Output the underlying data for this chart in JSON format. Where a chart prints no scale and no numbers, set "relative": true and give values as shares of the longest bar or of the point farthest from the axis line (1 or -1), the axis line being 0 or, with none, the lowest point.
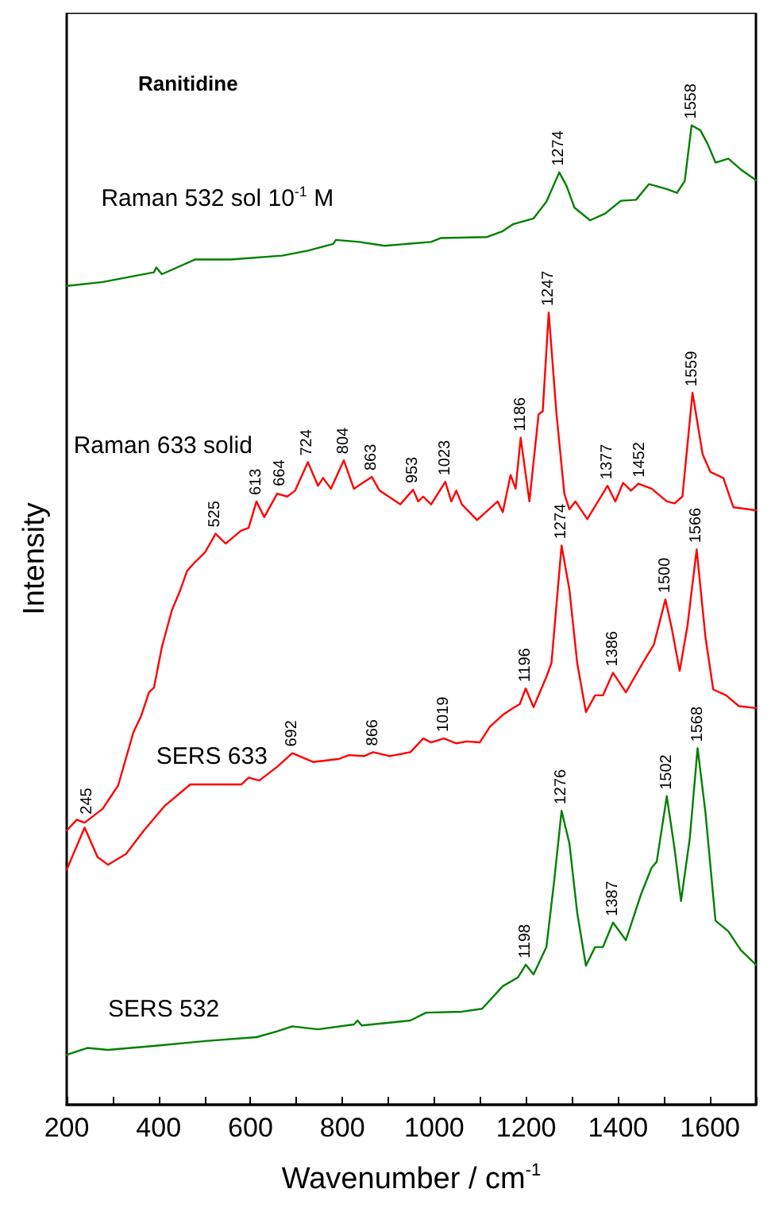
{
  "chart_data": {
    "type": "line",
    "title": "Ranitidine",
    "xlabel": "Wavenumber / cm$^{-1}$",
    "ylabel": "Intensity",
    "relative": true,
    "xlim": [
      200,
      1700
    ],
    "xticks": [
      200,
      {
        "value": 300,
        "label": null
      },
      400,
      {
        "value": 500,
        "label": null
      },
      600,
      {
        "value": 700,
        "label": null
      },
      800,
      {
        "value": 900,
        "label": null
      },
      1000,
      {
        "value": 1100,
        "label": null
      },
      1200,
      {
        "value": 1300,
        "label": null
      },
      1400,
      {
        "value": 1500,
        "label": null
      },
      1600,
      {
        "value": 1700,
        "label": null
      }
    ],
    "grid": false,
    "legend": false,
    "marker": "none",
    "line_style": "solid",
    "series": [
      {
        "name": "Raman 532 sol 10$^{-1}$ M",
        "color": "#008000",
        "x": [
          200,
          278,
          390,
          395,
          407,
          479,
          557,
          669,
          725,
          780,
          786,
          836,
          892,
          993,
          1015,
          1115,
          1149,
          1171,
          1216,
          1244,
          1272,
          1288,
          1305,
          1339,
          1372,
          1406,
          1439,
          1467,
          1506,
          1528,
          1545,
          1560,
          1579,
          1595,
          1612,
          1640,
          1667,
          1700
        ],
        "values": [
          0.836,
          0.84,
          0.85,
          0.855,
          0.848,
          0.863,
          0.863,
          0.867,
          0.872,
          0.879,
          0.883,
          0.881,
          0.877,
          0.881,
          0.885,
          0.886,
          0.892,
          0.899,
          0.905,
          0.922,
          0.952,
          0.938,
          0.916,
          0.903,
          0.91,
          0.923,
          0.924,
          0.94,
          0.935,
          0.931,
          0.943,
          1.0,
          0.995,
          0.981,
          0.962,
          0.966,
          0.955,
          0.944
        ]
      },
      {
        "name": "Raman 633 solid",
        "color": "#ff0000",
        "x": [
          200,
          222,
          239,
          278,
          312,
          345,
          362,
          379,
          390,
          407,
          429,
          446,
          462,
          479,
          501,
          524,
          546,
          579,
          596,
          613,
          630,
          658,
          680,
          697,
          725,
          747,
          758,
          775,
          803,
          825,
          864,
          881,
          926,
          954,
          965,
          976,
          993,
          1024,
          1037,
          1048,
          1060,
          1093,
          1138,
          1149,
          1166,
          1177,
          1188,
          1207,
          1227,
          1236,
          1249,
          1266,
          1283,
          1294,
          1307,
          1333,
          1377,
          1394,
          1411,
          1428,
          1444,
          1473,
          1506,
          1523,
          1540,
          1562,
          1584,
          1601,
          1629,
          1651,
          1700
        ],
        "values": [
          0.28,
          0.291,
          0.288,
          0.302,
          0.326,
          0.38,
          0.397,
          0.421,
          0.426,
          0.467,
          0.505,
          0.524,
          0.545,
          0.554,
          0.564,
          0.583,
          0.573,
          0.586,
          0.589,
          0.616,
          0.6,
          0.624,
          0.621,
          0.627,
          0.656,
          0.632,
          0.64,
          0.629,
          0.658,
          0.629,
          0.641,
          0.627,
          0.613,
          0.628,
          0.616,
          0.621,
          0.613,
          0.636,
          0.616,
          0.627,
          0.613,
          0.597,
          0.616,
          0.605,
          0.643,
          0.629,
          0.681,
          0.616,
          0.705,
          0.708,
          0.809,
          0.705,
          0.624,
          0.608,
          0.616,
          0.598,
          0.632,
          0.616,
          0.635,
          0.627,
          0.634,
          0.629,
          0.616,
          0.614,
          0.621,
          0.727,
          0.664,
          0.646,
          0.64,
          0.61,
          0.607
        ]
      },
      {
        "name": "SERS 633",
        "color": "#ff0000",
        "x": [
          200,
          239,
          267,
          290,
          329,
          368,
          413,
          469,
          580,
          596,
          619,
          658,
          691,
          736,
          792,
          814,
          847,
          867,
          903,
          948,
          976,
          993,
          1021,
          1048,
          1071,
          1099,
          1121,
          1149,
          1171,
          1186,
          1199,
          1216,
          1244,
          1255,
          1277,
          1294,
          1311,
          1330,
          1350,
          1367,
          1389,
          1417,
          1456,
          1478,
          1503,
          1517,
          1534,
          1551,
          1571,
          1590,
          1607,
          1635,
          1663,
          1700
        ],
        "values": [
          0.24,
          0.283,
          0.253,
          0.245,
          0.256,
          0.28,
          0.305,
          0.327,
          0.327,
          0.334,
          0.331,
          0.345,
          0.359,
          0.35,
          0.353,
          0.357,
          0.356,
          0.36,
          0.356,
          0.36,
          0.374,
          0.37,
          0.374,
          0.369,
          0.371,
          0.37,
          0.386,
          0.398,
          0.405,
          0.409,
          0.425,
          0.406,
          0.437,
          0.451,
          0.571,
          0.526,
          0.451,
          0.401,
          0.418,
          0.418,
          0.441,
          0.421,
          0.453,
          0.47,
          0.516,
          0.486,
          0.443,
          0.489,
          0.567,
          0.478,
          0.424,
          0.418,
          0.407,
          0.405
        ]
      },
      {
        "name": "SERS 532",
        "color": "#008000",
        "x": [
          200,
          245,
          290,
          390,
          501,
          613,
          658,
          691,
          747,
          825,
          833,
          842,
          948,
          982,
          1060,
          1104,
          1149,
          1182,
          1199,
          1216,
          1244,
          1261,
          1277,
          1294,
          1311,
          1330,
          1350,
          1367,
          1389,
          1417,
          1450,
          1473,
          1484,
          1506,
          1523,
          1537,
          1556,
          1573,
          1590,
          1612,
          1640,
          1667,
          1700
        ],
        "values": [
          0.051,
          0.058,
          0.056,
          0.06,
          0.065,
          0.069,
          0.075,
          0.08,
          0.077,
          0.082,
          0.086,
          0.081,
          0.086,
          0.094,
          0.095,
          0.098,
          0.121,
          0.13,
          0.143,
          0.133,
          0.161,
          0.229,
          0.3,
          0.267,
          0.196,
          0.142,
          0.161,
          0.161,
          0.186,
          0.168,
          0.215,
          0.242,
          0.248,
          0.315,
          0.261,
          0.208,
          0.272,
          0.364,
          0.299,
          0.188,
          0.177,
          0.158,
          0.143
        ]
      }
    ],
    "annotations": [
      {
        "text": "1274",
        "x": 1272,
        "y": 0.952
      },
      {
        "text": "1558",
        "x": 1560,
        "y": 1.0
      },
      {
        "text": "525",
        "x": 524,
        "y": 0.583
      },
      {
        "text": "613",
        "x": 613,
        "y": 0.616
      },
      {
        "text": "664",
        "x": 664,
        "y": 0.625
      },
      {
        "text": "724",
        "x": 724,
        "y": 0.656
      },
      {
        "text": "804",
        "x": 803,
        "y": 0.658
      },
      {
        "text": "863",
        "x": 864,
        "y": 0.641
      },
      {
        "text": "953",
        "x": 954,
        "y": 0.628
      },
      {
        "text": "1023",
        "x": 1024,
        "y": 0.636
      },
      {
        "text": "1186",
        "x": 1188,
        "y": 0.681
      },
      {
        "text": "1247",
        "x": 1249,
        "y": 0.809
      },
      {
        "text": "1377",
        "x": 1377,
        "y": 0.632
      },
      {
        "text": "1452",
        "x": 1448,
        "y": 0.634
      },
      {
        "text": "1559",
        "x": 1562,
        "y": 0.727
      },
      {
        "text": "245",
        "x": 245,
        "y": 0.29
      },
      {
        "text": "692",
        "x": 691,
        "y": 0.359
      },
      {
        "text": "866",
        "x": 867,
        "y": 0.36
      },
      {
        "text": "1019",
        "x": 1021,
        "y": 0.374
      },
      {
        "text": "1196",
        "x": 1199,
        "y": 0.425
      },
      {
        "text": "1274",
        "x": 1277,
        "y": 0.571
      },
      {
        "text": "1386",
        "x": 1389,
        "y": 0.441
      },
      {
        "text": "1500",
        "x": 1503,
        "y": 0.516
      },
      {
        "text": "1566",
        "x": 1571,
        "y": 0.567
      },
      {
        "text": "1198",
        "x": 1199,
        "y": 0.143
      },
      {
        "text": "1276",
        "x": 1277,
        "y": 0.3
      },
      {
        "text": "1387",
        "x": 1389,
        "y": 0.186
      },
      {
        "text": "1502",
        "x": 1506,
        "y": 0.315
      },
      {
        "text": "1568",
        "x": 1573,
        "y": 0.364
      }
    ]
  }
}
